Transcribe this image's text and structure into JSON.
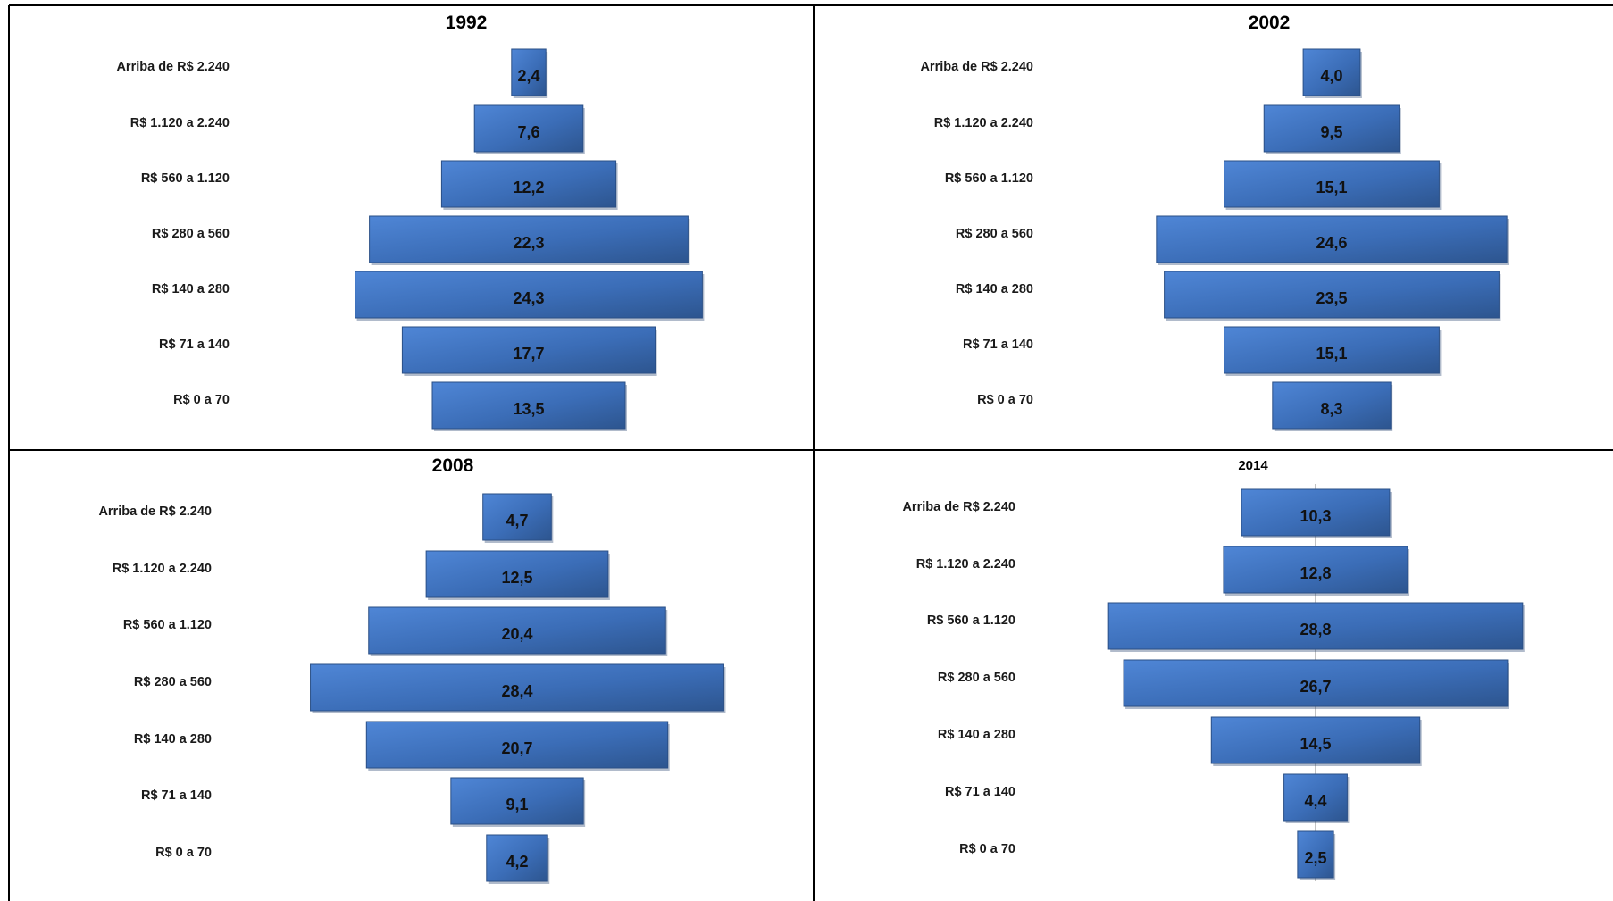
{
  "chart_data": [
    {
      "type": "bar",
      "title": "1992",
      "categories": [
        "Arriba de R$ 2.240",
        "R$ 1.120 a 2.240",
        "R$ 560 a 1.120",
        "R$ 280 a 560",
        "R$ 140 a 280",
        "R$ 71 a 140",
        "R$ 0 a 70"
      ],
      "values": [
        2.4,
        7.6,
        12.2,
        22.3,
        24.3,
        17.7,
        13.5
      ],
      "value_labels": [
        "2,4",
        "7,6",
        "12,2",
        "22,3",
        "24,3",
        "17,7",
        "13,5"
      ],
      "orientation": "horizontal-centered",
      "color": "#3d6fb8"
    },
    {
      "type": "bar",
      "title": "2002",
      "categories": [
        "Arriba de R$ 2.240",
        "R$ 1.120 a 2.240",
        "R$ 560 a 1.120",
        "R$ 280 a 560",
        "R$ 140 a 280",
        "R$ 71 a 140",
        "R$ 0 a 70"
      ],
      "values": [
        4.0,
        9.5,
        15.1,
        24.6,
        23.5,
        15.1,
        8.3
      ],
      "value_labels": [
        "4,0",
        "9,5",
        "15,1",
        "24,6",
        "23,5",
        "15,1",
        "8,3"
      ],
      "orientation": "horizontal-centered",
      "color": "#3d6fb8"
    },
    {
      "type": "bar",
      "title": "2008",
      "categories": [
        "Arriba de R$ 2.240",
        "R$ 1.120 a 2.240",
        "R$ 560 a 1.120",
        "R$ 280 a 560",
        "R$ 140 a 280",
        "R$ 71 a 140",
        "R$ 0 a 70"
      ],
      "values": [
        4.7,
        12.5,
        20.4,
        28.4,
        20.7,
        9.1,
        4.2
      ],
      "value_labels": [
        "4,7",
        "12,5",
        "20,4",
        "28,4",
        "20,7",
        "9,1",
        "4,2"
      ],
      "orientation": "horizontal-centered",
      "color": "#3d6fb8"
    },
    {
      "type": "bar",
      "title": "2014",
      "categories": [
        "Arriba de R$ 2.240",
        "R$ 1.120 a 2.240",
        "R$ 560 a 1.120",
        "R$ 280 a 560",
        "R$ 140 a 280",
        "R$ 71 a 140",
        "R$ 0 a 70"
      ],
      "values": [
        10.3,
        12.8,
        28.8,
        26.7,
        14.5,
        4.4,
        2.5
      ],
      "value_labels": [
        "10,3",
        "12,8",
        "28,8",
        "26,7",
        "14,5",
        "4,4",
        "2,5"
      ],
      "orientation": "horizontal-centered",
      "center_axis": true,
      "color": "#3d6fb8"
    }
  ]
}
